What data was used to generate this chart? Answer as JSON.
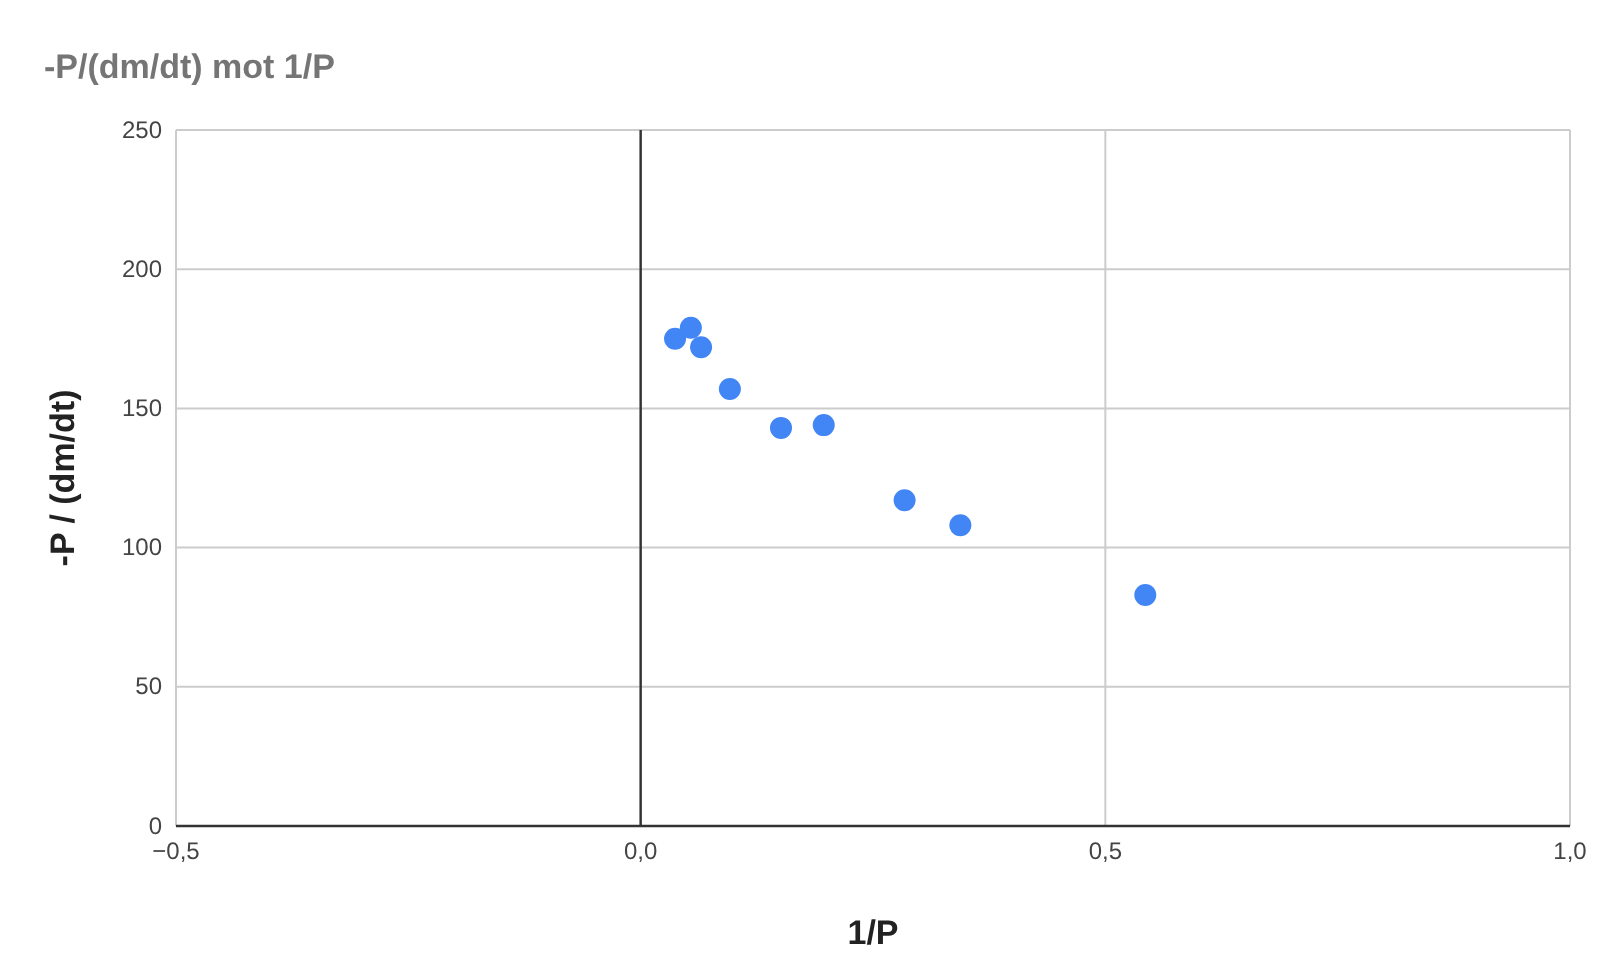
{
  "chart_data": {
    "type": "scatter",
    "title": "-P/(dm/dt) mot 1/P",
    "xlabel": "1/P",
    "ylabel": "-P / (dm/dt)",
    "x": [
      0.037,
      0.054,
      0.065,
      0.096,
      0.151,
      0.197,
      0.284,
      0.344,
      0.543
    ],
    "series": [
      {
        "color": "#4285f4",
        "values": [
          175,
          179,
          172,
          157,
          143,
          144,
          117,
          108,
          83
        ]
      }
    ],
    "xlim": [
      -0.5,
      1.0
    ],
    "xticks": [
      {
        "value": -0.5,
        "label": "−0,5"
      },
      {
        "value": 0,
        "label": "0,0"
      },
      {
        "value": 0.5,
        "label": "0,5"
      },
      {
        "value": 1.0,
        "label": "1,0"
      }
    ],
    "ylim": [
      0,
      250
    ],
    "yticks": [
      0,
      50,
      100,
      150,
      200,
      250
    ],
    "grid": true,
    "marker": "circle",
    "ref_lines": [
      {
        "axis": "x",
        "value": 0,
        "color": "#333333"
      }
    ]
  }
}
